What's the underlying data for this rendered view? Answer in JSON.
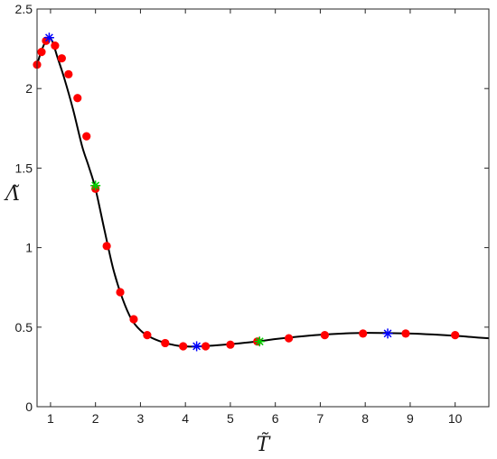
{
  "chart_data": {
    "type": "scatter",
    "title": "",
    "xlabel": "T̃",
    "ylabel": "Λ̃",
    "xlim": [
      0.7,
      10.75
    ],
    "ylim": [
      0,
      2.5
    ],
    "x_ticks": [
      1,
      2,
      3,
      4,
      5,
      6,
      7,
      8,
      9,
      10
    ],
    "y_ticks": [
      0,
      0.5,
      1,
      1.5,
      2,
      2.5
    ],
    "x_tick_labels": [
      "1",
      "2",
      "3",
      "4",
      "5",
      "6",
      "7",
      "8",
      "9",
      "10"
    ],
    "y_tick_labels": [
      "0",
      "0.5",
      "1",
      "1.5",
      "2",
      "2.5"
    ],
    "grid": false,
    "legend": "none",
    "series": [
      {
        "kind": "line",
        "color": "#000000",
        "x": [
          0.7,
          0.8,
          0.9,
          0.97,
          1.05,
          1.15,
          1.3,
          1.5,
          1.7,
          1.85,
          2.0,
          2.2,
          2.4,
          2.6,
          2.8,
          3.0,
          3.2,
          3.5,
          3.8,
          4.1,
          4.4,
          4.8,
          5.2,
          5.6,
          6.0,
          6.5,
          7.0,
          7.5,
          8.0,
          8.5,
          9.0,
          9.5,
          10.0,
          10.4,
          10.75
        ],
        "y": [
          2.15,
          2.24,
          2.3,
          2.32,
          2.29,
          2.2,
          2.07,
          1.87,
          1.64,
          1.51,
          1.37,
          1.11,
          0.86,
          0.68,
          0.55,
          0.48,
          0.44,
          0.405,
          0.385,
          0.378,
          0.38,
          0.388,
          0.398,
          0.41,
          0.425,
          0.44,
          0.452,
          0.46,
          0.464,
          0.463,
          0.46,
          0.454,
          0.446,
          0.437,
          0.43
        ]
      },
      {
        "kind": "markers",
        "marker": "circle",
        "color": "#ff0000",
        "x": [
          0.7,
          0.8,
          0.9,
          1.1,
          1.25,
          1.4,
          1.6,
          1.8,
          2.0,
          2.25,
          2.55,
          2.85,
          3.15,
          3.55,
          3.95,
          4.45,
          5.0,
          5.6,
          6.3,
          7.1,
          7.95,
          8.9,
          10.0
        ],
        "y": [
          2.15,
          2.23,
          2.3,
          2.27,
          2.19,
          2.09,
          1.94,
          1.7,
          1.37,
          1.01,
          0.72,
          0.55,
          0.45,
          0.4,
          0.38,
          0.38,
          0.39,
          0.41,
          0.43,
          0.45,
          0.46,
          0.46,
          0.45
        ]
      },
      {
        "kind": "markers",
        "marker": "asterisk",
        "color": "#0000ff",
        "x": [
          0.97,
          4.25,
          8.5
        ],
        "y": [
          2.32,
          0.38,
          0.46
        ]
      },
      {
        "kind": "markers",
        "marker": "asterisk",
        "color": "#00cc00",
        "x": [
          2.0,
          5.65
        ],
        "y": [
          1.39,
          0.41
        ]
      }
    ]
  }
}
